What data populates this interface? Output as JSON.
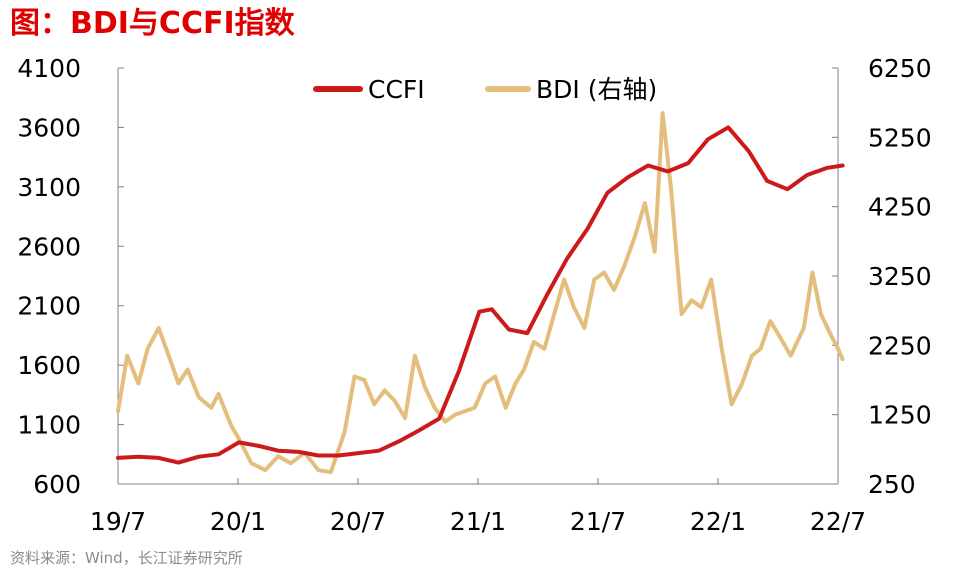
{
  "title": "图：BDI与CCFI指数",
  "source": "资料来源：Wind，长江证券研究所",
  "colors": {
    "title": "#e00000",
    "ccfi": "#cc1a1a",
    "bdi": "#e3be7c",
    "axis": "#808080"
  },
  "chart_data": {
    "type": "line",
    "x_ticks": [
      "19/7",
      "20/1",
      "20/7",
      "21/1",
      "21/7",
      "22/1",
      "22/7"
    ],
    "x_range": [
      "2019-07",
      "2022-07"
    ],
    "left_axis": {
      "ticks": [
        "4100",
        "3600",
        "3100",
        "2600",
        "2100",
        "1600",
        "1100",
        "600"
      ],
      "ylim": [
        600,
        4100
      ]
    },
    "right_axis": {
      "ticks": [
        "6250",
        "5250",
        "4250",
        "3250",
        "2250",
        "1250",
        "250"
      ],
      "ylim": [
        250,
        6250
      ]
    },
    "legend": {
      "position": "top-center"
    },
    "series": [
      {
        "name": "CCFI",
        "axis": "left",
        "points": [
          [
            "2019-07-01",
            820
          ],
          [
            "2019-08-01",
            830
          ],
          [
            "2019-09-01",
            820
          ],
          [
            "2019-10-01",
            780
          ],
          [
            "2019-11-01",
            830
          ],
          [
            "2019-12-01",
            850
          ],
          [
            "2020-01-01",
            950
          ],
          [
            "2020-02-01",
            920
          ],
          [
            "2020-03-01",
            880
          ],
          [
            "2020-04-01",
            870
          ],
          [
            "2020-05-01",
            840
          ],
          [
            "2020-06-01",
            840
          ],
          [
            "2020-07-01",
            860
          ],
          [
            "2020-08-01",
            880
          ],
          [
            "2020-09-01",
            960
          ],
          [
            "2020-10-01",
            1050
          ],
          [
            "2020-11-01",
            1150
          ],
          [
            "2020-12-01",
            1550
          ],
          [
            "2021-01-01",
            2050
          ],
          [
            "2021-01-20",
            2070
          ],
          [
            "2021-02-15",
            1900
          ],
          [
            "2021-03-15",
            1870
          ],
          [
            "2021-04-15",
            2200
          ],
          [
            "2021-05-15",
            2500
          ],
          [
            "2021-06-15",
            2750
          ],
          [
            "2021-07-15",
            3050
          ],
          [
            "2021-08-15",
            3180
          ],
          [
            "2021-09-15",
            3280
          ],
          [
            "2021-10-15",
            3230
          ],
          [
            "2021-11-15",
            3300
          ],
          [
            "2021-12-15",
            3500
          ],
          [
            "2022-01-15",
            3600
          ],
          [
            "2022-02-15",
            3400
          ],
          [
            "2022-03-15",
            3150
          ],
          [
            "2022-04-15",
            3080
          ],
          [
            "2022-05-15",
            3200
          ],
          [
            "2022-06-15",
            3260
          ],
          [
            "2022-07-08",
            3280
          ]
        ]
      },
      {
        "name": "BDI (右轴)",
        "axis": "right",
        "points": [
          [
            "2019-07-01",
            1300
          ],
          [
            "2019-07-15",
            2100
          ],
          [
            "2019-08-01",
            1700
          ],
          [
            "2019-08-15",
            2200
          ],
          [
            "2019-09-01",
            2500
          ],
          [
            "2019-09-20",
            2000
          ],
          [
            "2019-10-01",
            1700
          ],
          [
            "2019-10-15",
            1900
          ],
          [
            "2019-11-01",
            1500
          ],
          [
            "2019-11-20",
            1350
          ],
          [
            "2019-12-01",
            1550
          ],
          [
            "2019-12-20",
            1100
          ],
          [
            "2020-01-01",
            900
          ],
          [
            "2020-01-20",
            550
          ],
          [
            "2020-02-10",
            450
          ],
          [
            "2020-03-01",
            650
          ],
          [
            "2020-03-20",
            550
          ],
          [
            "2020-04-10",
            700
          ],
          [
            "2020-05-01",
            450
          ],
          [
            "2020-05-20",
            420
          ],
          [
            "2020-06-10",
            1000
          ],
          [
            "2020-06-25",
            1800
          ],
          [
            "2020-07-10",
            1750
          ],
          [
            "2020-07-25",
            1400
          ],
          [
            "2020-08-10",
            1600
          ],
          [
            "2020-08-25",
            1450
          ],
          [
            "2020-09-10",
            1200
          ],
          [
            "2020-09-25",
            2100
          ],
          [
            "2020-10-10",
            1650
          ],
          [
            "2020-10-25",
            1350
          ],
          [
            "2020-11-10",
            1150
          ],
          [
            "2020-11-25",
            1250
          ],
          [
            "2020-12-10",
            1300
          ],
          [
            "2020-12-25",
            1350
          ],
          [
            "2021-01-10",
            1700
          ],
          [
            "2021-01-25",
            1800
          ],
          [
            "2021-02-10",
            1350
          ],
          [
            "2021-02-25",
            1700
          ],
          [
            "2021-03-10",
            1900
          ],
          [
            "2021-03-25",
            2300
          ],
          [
            "2021-04-10",
            2200
          ],
          [
            "2021-04-25",
            2700
          ],
          [
            "2021-05-10",
            3200
          ],
          [
            "2021-05-25",
            2800
          ],
          [
            "2021-06-10",
            2500
          ],
          [
            "2021-06-25",
            3200
          ],
          [
            "2021-07-10",
            3300
          ],
          [
            "2021-07-25",
            3050
          ],
          [
            "2021-08-10",
            3400
          ],
          [
            "2021-08-25",
            3800
          ],
          [
            "2021-09-10",
            4300
          ],
          [
            "2021-09-25",
            3600
          ],
          [
            "2021-10-07",
            5600
          ],
          [
            "2021-10-20",
            4500
          ],
          [
            "2021-11-05",
            2700
          ],
          [
            "2021-11-20",
            2900
          ],
          [
            "2021-12-05",
            2800
          ],
          [
            "2021-12-20",
            3200
          ],
          [
            "2022-01-05",
            2200
          ],
          [
            "2022-01-20",
            1400
          ],
          [
            "2022-02-05",
            1700
          ],
          [
            "2022-02-20",
            2100
          ],
          [
            "2022-03-05",
            2200
          ],
          [
            "2022-03-20",
            2600
          ],
          [
            "2022-04-05",
            2350
          ],
          [
            "2022-04-20",
            2100
          ],
          [
            "2022-05-10",
            2500
          ],
          [
            "2022-05-23",
            3300
          ],
          [
            "2022-06-05",
            2700
          ],
          [
            "2022-06-20",
            2400
          ],
          [
            "2022-07-01",
            2200
          ],
          [
            "2022-07-08",
            2050
          ]
        ]
      }
    ]
  }
}
